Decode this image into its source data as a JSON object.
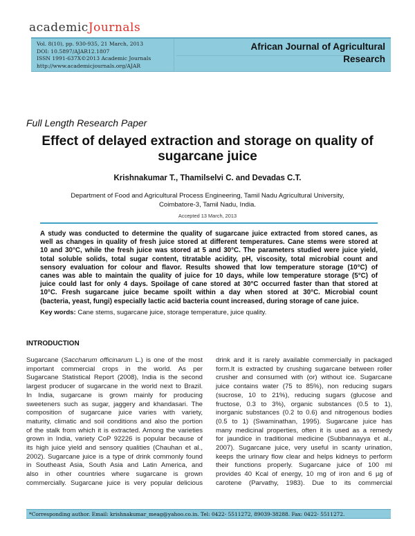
{
  "header": {
    "logo_prefix": "academic",
    "logo_suffix": "Journals",
    "meta": [
      "Vol. 8(10), pp. 930-935, 21 March, 2013",
      "DOI: 10.5897/AJAR12.1807",
      "ISSN 1991-637X©2013 Academic Journals",
      "http://www.academicjournals.org/AJAR"
    ],
    "journal_title_1": "African Journal of Agricultural",
    "journal_title_2": "Research"
  },
  "paper_type": "Full Length Research Paper",
  "title_1": "Effect of delayed extraction and storage on quality of",
  "title_2": "sugarcane juice",
  "authors": "Krishnakumar T., Thamilselvi C. and Devadas C.T.",
  "department_1": "Department of Food and Agricultural Process Engineering, Tamil Nadu Agricultural University,",
  "department_2": "Coimbatore-3, Tamil Nadu, India.",
  "accepted": "Accepted 13 March, 2013",
  "abstract_lines": [
    "A study was conducted to determine the quality of sugarcane juice extracted from stored canes, as",
    "well as changes in quality of fresh juice stored at different temperatures. Cane stems were stored at",
    "10 and 30°C, while the fresh juice was stored at 5 and 30°C. The parameters studied were juice yield,",
    "total soluble solids, total sugar content, titratable acidity, pH, viscosity, total microbial count and",
    "sensory evaluation for colour and flavor. Results showed that low temperature storage (10°C) of",
    "canes was able to maintain the quality of juice for 10 days, while low temperature storage (5°C) of",
    "juice could last for only 4 days. Spoilage of cane stored at 30°C occurred faster than that stored at",
    "10°C. Fresh sugarcane juice became spoilt within a day when stored at 30°C. Microbial count",
    "(bacteria, yeast, fungi) especially lactic acid bacteria count increased, during storage of cane juice."
  ],
  "keywords_label": "Key words:",
  "keywords": " Cane stems, sugarcane juice, storage temperature, juice quality.",
  "section_heading": "INTRODUCTION",
  "left_column": {
    "first_a": "Sugarcane (",
    "first_italic": "Saccharum officinarum",
    "first_b": " L.) is one of the most",
    "lines": [
      "important commercial crops in the world. As per",
      "Sugarcane Statistical Report (2008), India is the second",
      "largest producer of sugarcane in the world next to Brazil.",
      "In India, sugarcane is grown mainly for producing",
      "sweeteners such as sugar, jaggery and khandasari. The",
      "composition of sugarcane juice varies with variety,",
      "maturity, climatic and soil conditions and also the portion",
      "of the stalk from which it is extracted. Among the varieties",
      "grown in India, variety CoP 92226 is popular because of",
      "its high juice yield and sensory qualities (Chauhan et al.,",
      "2002). Sugarcane juice is a type of drink commonly found",
      "in Southeast Asia, South Asia and Latin America, and",
      "also in other countries where sugarcane is grown",
      "commercially. Sugarcane juice is very popular delicious"
    ]
  },
  "right_column": {
    "lines": [
      "drink and it is rarely available commercially in packaged",
      "form.It is extracted by crushing sugarcane between roller",
      "crusher and consumed with (or) without ice. Sugarcane",
      "juice contains water (75 to 85%), non reducing sugars",
      "(sucrose, 10 to 21%), reducing sugars (glucose and",
      "fructose, 0.3 to 3%), organic substances (0.5 to 1),",
      "inorganic substances (0.2 to 0.6) and nitrogenous bodies",
      "(0.5 to 1) (Swaminathan, 1995). Sugarcane juice has",
      "many medicinal properties, often it is used as a remedy",
      "for jaundice in traditional medicine (Subbannayya et al.,",
      "2007). Sugarcane juice, very useful in scanty urination,",
      "keeps the urinary flow clear and helps kidneys to perform",
      "their functions properly. Sugarcane juice of 100 ml",
      "provides 40 Kcal of energy, 10 mg of iron and 6 µg of",
      "carotene (Parvathy, 1983). Due to its commercial"
    ]
  },
  "footnote": "*Corresponding author. Email: krishnakumar_meag@yahoo.co.in. Tel: 0422- 5511272, 89039-38288. Fax: 0422- 5511272.",
  "colors": {
    "header_band": "#8ecbdc",
    "logo_accent": "#e0302a",
    "rule": "#3fa2c4"
  }
}
